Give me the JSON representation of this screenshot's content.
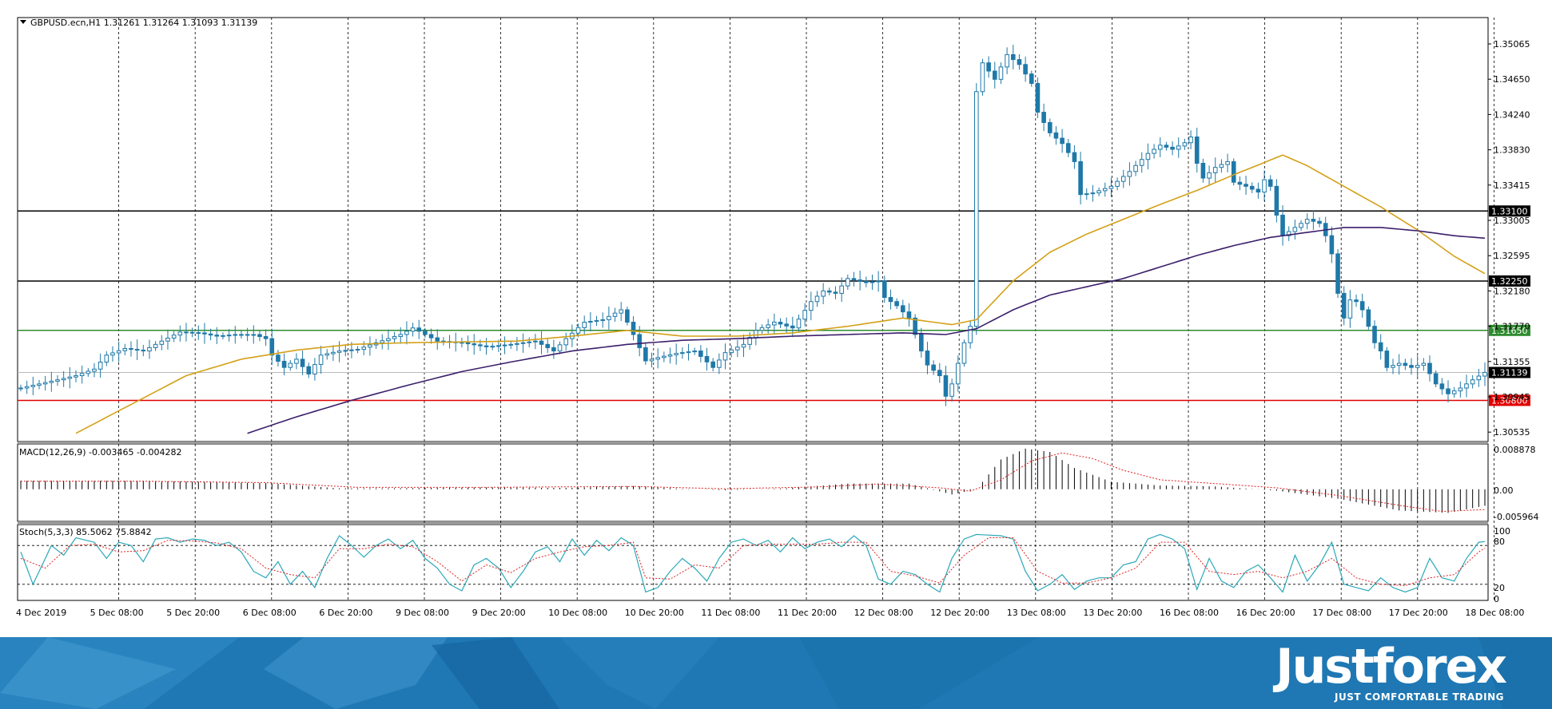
{
  "chart_data": {
    "type": "candlestick",
    "symbol_info": "GBPUSD.ecn,H1  1.31261 1.31264 1.31093 1.31139",
    "main_panel": {
      "ylim": [
        1.303,
        1.3545
      ],
      "y_ticks": [
        "1.35065",
        "1.34650",
        "1.34240",
        "1.33830",
        "1.33415",
        "1.33005",
        "1.32595",
        "1.32180",
        "1.31770",
        "1.31355",
        "1.30945",
        "1.30535"
      ],
      "current_price": "1.31139",
      "levels": [
        {
          "label": "1.33100",
          "value": 1.331,
          "color": "#000000"
        },
        {
          "label": "1.32250",
          "value": 1.3225,
          "color": "#000000"
        },
        {
          "label": "1.31650",
          "value": 1.3165,
          "color": "#2e8b2e"
        },
        {
          "label": "1.30800",
          "value": 1.308,
          "color": "#e00000"
        }
      ],
      "ma_fast_color": "#d4a017",
      "ma_slow_color": "#3b1f6b",
      "candle_up_color": "#ffffff",
      "candle_down_color": "#1f78a8"
    },
    "macd_panel": {
      "label": "MACD(12,26,9) -0.003465 -0.004282",
      "ylim": [
        -0.0068,
        0.0096
      ],
      "y_ticks": [
        "0.008878",
        "0.00",
        "-0.005964"
      ]
    },
    "stoch_panel": {
      "label": "Stoch(5,3,3) 85.5062 75.8842",
      "ylim": [
        0,
        100
      ],
      "y_ticks": [
        "100",
        "80",
        "20",
        "0"
      ],
      "main_color": "#2aa8b8",
      "signal_color": "#e02020"
    },
    "x_labels": [
      "4 Dec 2019",
      "5 Dec 08:00",
      "5 Dec 20:00",
      "6 Dec 08:00",
      "6 Dec 20:00",
      "9 Dec 08:00",
      "9 Dec 20:00",
      "10 Dec 08:00",
      "10 Dec 20:00",
      "11 Dec 08:00",
      "11 Dec 20:00",
      "12 Dec 08:00",
      "12 Dec 20:00",
      "13 Dec 08:00",
      "13 Dec 20:00",
      "16 Dec 08:00",
      "16 Dec 20:00",
      "17 Dec 08:00",
      "17 Dec 20:00",
      "18 Dec 08:00"
    ],
    "close_path": [
      [
        0,
        1.3095
      ],
      [
        3,
        1.31
      ],
      [
        6,
        1.3105
      ],
      [
        9,
        1.311
      ],
      [
        12,
        1.3118
      ],
      [
        14,
        1.3135
      ],
      [
        17,
        1.3143
      ],
      [
        20,
        1.314
      ],
      [
        23,
        1.3152
      ],
      [
        26,
        1.3163
      ],
      [
        29,
        1.3162
      ],
      [
        32,
        1.3158
      ],
      [
        35,
        1.316
      ],
      [
        38,
        1.316
      ],
      [
        40,
        1.3155
      ],
      [
        41,
        1.3135
      ],
      [
        43,
        1.312
      ],
      [
        45,
        1.313
      ],
      [
        47,
        1.3112
      ],
      [
        49,
        1.3135
      ],
      [
        52,
        1.314
      ],
      [
        55,
        1.3142
      ],
      [
        58,
        1.315
      ],
      [
        62,
        1.316
      ],
      [
        64,
        1.3168
      ],
      [
        66,
        1.316
      ],
      [
        68,
        1.3152
      ],
      [
        72,
        1.315
      ],
      [
        76,
        1.3145
      ],
      [
        80,
        1.3148
      ],
      [
        84,
        1.3152
      ],
      [
        87,
        1.314
      ],
      [
        89,
        1.3155
      ],
      [
        92,
        1.3175
      ],
      [
        95,
        1.3178
      ],
      [
        98,
        1.319
      ],
      [
        100,
        1.316
      ],
      [
        102,
        1.3128
      ],
      [
        104,
        1.3132
      ],
      [
        107,
        1.3137
      ],
      [
        110,
        1.314
      ],
      [
        113,
        1.312
      ],
      [
        115,
        1.3138
      ],
      [
        118,
        1.3148
      ],
      [
        120,
        1.3165
      ],
      [
        123,
        1.3175
      ],
      [
        126,
        1.3168
      ],
      [
        129,
        1.32
      ],
      [
        131,
        1.3213
      ],
      [
        133,
        1.321
      ],
      [
        135,
        1.3228
      ],
      [
        138,
        1.3223
      ],
      [
        140,
        1.3225
      ],
      [
        141,
        1.3205
      ],
      [
        143,
        1.3195
      ],
      [
        145,
        1.318
      ],
      [
        146,
        1.316
      ],
      [
        147,
        1.314
      ],
      [
        148,
        1.3123
      ],
      [
        150,
        1.311
      ],
      [
        151,
        1.3085
      ],
      [
        152,
        1.31
      ],
      [
        154,
        1.315
      ],
      [
        155,
        1.317
      ],
      [
        156,
        1.3455
      ],
      [
        157,
        1.349
      ],
      [
        159,
        1.347
      ],
      [
        161,
        1.35
      ],
      [
        163,
        1.3488
      ],
      [
        165,
        1.3465
      ],
      [
        166,
        1.343
      ],
      [
        168,
        1.3405
      ],
      [
        170,
        1.3392
      ],
      [
        172,
        1.337
      ],
      [
        173,
        1.333
      ],
      [
        175,
        1.3332
      ],
      [
        178,
        1.334
      ],
      [
        181,
        1.3358
      ],
      [
        184,
        1.338
      ],
      [
        186,
        1.339
      ],
      [
        188,
        1.3385
      ],
      [
        190,
        1.3393
      ],
      [
        191,
        1.34
      ],
      [
        192,
        1.3368
      ],
      [
        193,
        1.335
      ],
      [
        195,
        1.3363
      ],
      [
        197,
        1.337
      ],
      [
        198,
        1.3345
      ],
      [
        200,
        1.334
      ],
      [
        202,
        1.3333
      ],
      [
        203,
        1.3348
      ],
      [
        204,
        1.334
      ],
      [
        205,
        1.3305
      ],
      [
        206,
        1.328
      ],
      [
        208,
        1.329
      ],
      [
        210,
        1.33
      ],
      [
        212,
        1.3295
      ],
      [
        213,
        1.328
      ],
      [
        214,
        1.3258
      ],
      [
        215,
        1.321
      ],
      [
        216,
        1.318
      ],
      [
        217,
        1.3202
      ],
      [
        218,
        1.32
      ],
      [
        219,
        1.319
      ],
      [
        220,
        1.317
      ],
      [
        221,
        1.315
      ],
      [
        222,
        1.314
      ],
      [
        223,
        1.312
      ],
      [
        225,
        1.3125
      ],
      [
        227,
        1.312
      ],
      [
        229,
        1.3125
      ],
      [
        231,
        1.31
      ],
      [
        233,
        1.3088
      ],
      [
        235,
        1.3095
      ],
      [
        237,
        1.3105
      ],
      [
        239,
        1.3114
      ]
    ],
    "ma_fast_path": [
      [
        9,
        1.304
      ],
      [
        18,
        1.3075
      ],
      [
        27,
        1.311
      ],
      [
        36,
        1.313
      ],
      [
        45,
        1.3141
      ],
      [
        54,
        1.3148
      ],
      [
        63,
        1.315
      ],
      [
        72,
        1.3151
      ],
      [
        81,
        1.3152
      ],
      [
        90,
        1.3158
      ],
      [
        99,
        1.3165
      ],
      [
        108,
        1.3158
      ],
      [
        117,
        1.3158
      ],
      [
        126,
        1.3162
      ],
      [
        135,
        1.317
      ],
      [
        144,
        1.318
      ],
      [
        152,
        1.3172
      ],
      [
        156,
        1.3178
      ],
      [
        162,
        1.3225
      ],
      [
        168,
        1.326
      ],
      [
        174,
        1.3282
      ],
      [
        180,
        1.33
      ],
      [
        186,
        1.3318
      ],
      [
        192,
        1.3335
      ],
      [
        198,
        1.3354
      ],
      [
        204,
        1.3372
      ],
      [
        206,
        1.3378
      ],
      [
        210,
        1.3365
      ],
      [
        216,
        1.334
      ],
      [
        222,
        1.3315
      ],
      [
        228,
        1.3287
      ],
      [
        234,
        1.3255
      ],
      [
        239,
        1.3234
      ]
    ],
    "ma_slow_path": [
      [
        37,
        1.304
      ],
      [
        45,
        1.306
      ],
      [
        54,
        1.308
      ],
      [
        63,
        1.3098
      ],
      [
        72,
        1.3115
      ],
      [
        81,
        1.3128
      ],
      [
        90,
        1.314
      ],
      [
        99,
        1.3148
      ],
      [
        108,
        1.3153
      ],
      [
        117,
        1.3155
      ],
      [
        126,
        1.3158
      ],
      [
        135,
        1.316
      ],
      [
        144,
        1.3162
      ],
      [
        151,
        1.316
      ],
      [
        156,
        1.3167
      ],
      [
        162,
        1.319
      ],
      [
        168,
        1.3208
      ],
      [
        174,
        1.3218
      ],
      [
        180,
        1.3228
      ],
      [
        186,
        1.3242
      ],
      [
        192,
        1.3256
      ],
      [
        198,
        1.3268
      ],
      [
        204,
        1.3278
      ],
      [
        210,
        1.3284
      ],
      [
        216,
        1.329
      ],
      [
        222,
        1.329
      ],
      [
        228,
        1.3286
      ],
      [
        234,
        1.328
      ],
      [
        239,
        1.3277
      ]
    ],
    "macd_path": [
      [
        0,
        0.0018
      ],
      [
        20,
        0.0018
      ],
      [
        40,
        0.0013
      ],
      [
        52,
        0.0002
      ],
      [
        60,
        0.0002
      ],
      [
        75,
        0.0004
      ],
      [
        90,
        0.0003
      ],
      [
        100,
        0.0007
      ],
      [
        108,
        0.0001
      ],
      [
        115,
        -0.0002
      ],
      [
        125,
        0.0002
      ],
      [
        135,
        0.0012
      ],
      [
        145,
        0.0012
      ],
      [
        152,
        -0.0011
      ],
      [
        156,
        0.0
      ],
      [
        160,
        0.0063
      ],
      [
        164,
        0.0086
      ],
      [
        168,
        0.0079
      ],
      [
        172,
        0.0045
      ],
      [
        178,
        0.0016
      ],
      [
        186,
        0.0008
      ],
      [
        195,
        0.0006
      ],
      [
        205,
        -0.0003
      ],
      [
        215,
        -0.002
      ],
      [
        225,
        -0.0045
      ],
      [
        233,
        -0.005
      ],
      [
        239,
        -0.0035
      ]
    ],
    "macd_signal_path": [
      [
        0,
        0.0017
      ],
      [
        20,
        0.0017
      ],
      [
        40,
        0.0014
      ],
      [
        55,
        0.0004
      ],
      [
        75,
        0.0004
      ],
      [
        100,
        0.0006
      ],
      [
        115,
        0.0001
      ],
      [
        130,
        0.0005
      ],
      [
        140,
        0.0011
      ],
      [
        150,
        0.0003
      ],
      [
        155,
        -0.0004
      ],
      [
        160,
        0.002
      ],
      [
        165,
        0.006
      ],
      [
        170,
        0.0077
      ],
      [
        175,
        0.0065
      ],
      [
        180,
        0.004
      ],
      [
        186,
        0.002
      ],
      [
        195,
        0.0012
      ],
      [
        205,
        0.0003
      ],
      [
        215,
        -0.0013
      ],
      [
        225,
        -0.0034
      ],
      [
        232,
        -0.0047
      ],
      [
        239,
        -0.0043
      ]
    ],
    "stoch_path": [
      [
        0,
        70
      ],
      [
        2,
        20
      ],
      [
        5,
        80
      ],
      [
        7,
        65
      ],
      [
        9,
        92
      ],
      [
        12,
        85
      ],
      [
        14,
        60
      ],
      [
        16,
        85
      ],
      [
        18,
        80
      ],
      [
        20,
        55
      ],
      [
        22,
        90
      ],
      [
        24,
        92
      ],
      [
        26,
        85
      ],
      [
        28,
        90
      ],
      [
        30,
        88
      ],
      [
        32,
        80
      ],
      [
        34,
        85
      ],
      [
        36,
        70
      ],
      [
        38,
        40
      ],
      [
        40,
        30
      ],
      [
        42,
        55
      ],
      [
        44,
        20
      ],
      [
        46,
        40
      ],
      [
        48,
        15
      ],
      [
        50,
        60
      ],
      [
        52,
        95
      ],
      [
        54,
        80
      ],
      [
        56,
        62
      ],
      [
        58,
        80
      ],
      [
        60,
        90
      ],
      [
        62,
        75
      ],
      [
        64,
        88
      ],
      [
        66,
        60
      ],
      [
        68,
        45
      ],
      [
        70,
        20
      ],
      [
        72,
        10
      ],
      [
        74,
        50
      ],
      [
        76,
        60
      ],
      [
        78,
        45
      ],
      [
        80,
        15
      ],
      [
        82,
        40
      ],
      [
        84,
        70
      ],
      [
        86,
        78
      ],
      [
        88,
        55
      ],
      [
        90,
        90
      ],
      [
        92,
        65
      ],
      [
        94,
        88
      ],
      [
        96,
        72
      ],
      [
        98,
        92
      ],
      [
        100,
        80
      ],
      [
        102,
        8
      ],
      [
        104,
        15
      ],
      [
        106,
        40
      ],
      [
        108,
        60
      ],
      [
        110,
        45
      ],
      [
        112,
        25
      ],
      [
        114,
        60
      ],
      [
        116,
        85
      ],
      [
        118,
        90
      ],
      [
        120,
        80
      ],
      [
        122,
        88
      ],
      [
        124,
        70
      ],
      [
        126,
        92
      ],
      [
        128,
        75
      ],
      [
        130,
        85
      ],
      [
        132,
        90
      ],
      [
        134,
        78
      ],
      [
        136,
        95
      ],
      [
        138,
        80
      ],
      [
        140,
        28
      ],
      [
        142,
        20
      ],
      [
        144,
        40
      ],
      [
        146,
        35
      ],
      [
        148,
        20
      ],
      [
        150,
        8
      ],
      [
        152,
        60
      ],
      [
        154,
        90
      ],
      [
        156,
        97
      ],
      [
        160,
        95
      ],
      [
        162,
        90
      ],
      [
        164,
        40
      ],
      [
        166,
        10
      ],
      [
        168,
        20
      ],
      [
        170,
        35
      ],
      [
        172,
        12
      ],
      [
        174,
        25
      ],
      [
        176,
        30
      ],
      [
        178,
        30
      ],
      [
        180,
        50
      ],
      [
        182,
        55
      ],
      [
        184,
        90
      ],
      [
        186,
        97
      ],
      [
        188,
        90
      ],
      [
        190,
        75
      ],
      [
        192,
        12
      ],
      [
        194,
        60
      ],
      [
        196,
        25
      ],
      [
        198,
        15
      ],
      [
        200,
        40
      ],
      [
        202,
        50
      ],
      [
        204,
        30
      ],
      [
        206,
        8
      ],
      [
        208,
        65
      ],
      [
        210,
        25
      ],
      [
        212,
        50
      ],
      [
        214,
        85
      ],
      [
        216,
        20
      ],
      [
        218,
        15
      ],
      [
        220,
        10
      ],
      [
        222,
        30
      ],
      [
        224,
        15
      ],
      [
        226,
        8
      ],
      [
        228,
        15
      ],
      [
        230,
        60
      ],
      [
        232,
        30
      ],
      [
        234,
        25
      ],
      [
        236,
        60
      ],
      [
        238,
        85
      ],
      [
        239,
        86
      ]
    ],
    "stoch_signal_path": [
      [
        0,
        60
      ],
      [
        4,
        45
      ],
      [
        8,
        80
      ],
      [
        12,
        82
      ],
      [
        16,
        70
      ],
      [
        20,
        72
      ],
      [
        24,
        88
      ],
      [
        28,
        87
      ],
      [
        32,
        84
      ],
      [
        36,
        75
      ],
      [
        40,
        45
      ],
      [
        44,
        35
      ],
      [
        48,
        30
      ],
      [
        52,
        75
      ],
      [
        56,
        75
      ],
      [
        60,
        82
      ],
      [
        64,
        78
      ],
      [
        68,
        55
      ],
      [
        72,
        25
      ],
      [
        76,
        50
      ],
      [
        80,
        38
      ],
      [
        84,
        60
      ],
      [
        88,
        70
      ],
      [
        92,
        78
      ],
      [
        96,
        80
      ],
      [
        100,
        85
      ],
      [
        102,
        30
      ],
      [
        106,
        28
      ],
      [
        110,
        50
      ],
      [
        114,
        45
      ],
      [
        118,
        80
      ],
      [
        122,
        82
      ],
      [
        126,
        82
      ],
      [
        130,
        82
      ],
      [
        134,
        85
      ],
      [
        138,
        85
      ],
      [
        142,
        40
      ],
      [
        146,
        33
      ],
      [
        150,
        22
      ],
      [
        154,
        65
      ],
      [
        158,
        92
      ],
      [
        162,
        92
      ],
      [
        166,
        40
      ],
      [
        170,
        22
      ],
      [
        174,
        22
      ],
      [
        178,
        30
      ],
      [
        182,
        45
      ],
      [
        186,
        85
      ],
      [
        190,
        85
      ],
      [
        194,
        40
      ],
      [
        198,
        35
      ],
      [
        202,
        40
      ],
      [
        206,
        30
      ],
      [
        210,
        40
      ],
      [
        214,
        60
      ],
      [
        218,
        30
      ],
      [
        222,
        20
      ],
      [
        226,
        18
      ],
      [
        230,
        30
      ],
      [
        234,
        35
      ],
      [
        238,
        70
      ],
      [
        239,
        76
      ]
    ]
  },
  "branding": {
    "logo": "Justforex",
    "tagline": "JUST COMFORTABLE TRADING"
  }
}
